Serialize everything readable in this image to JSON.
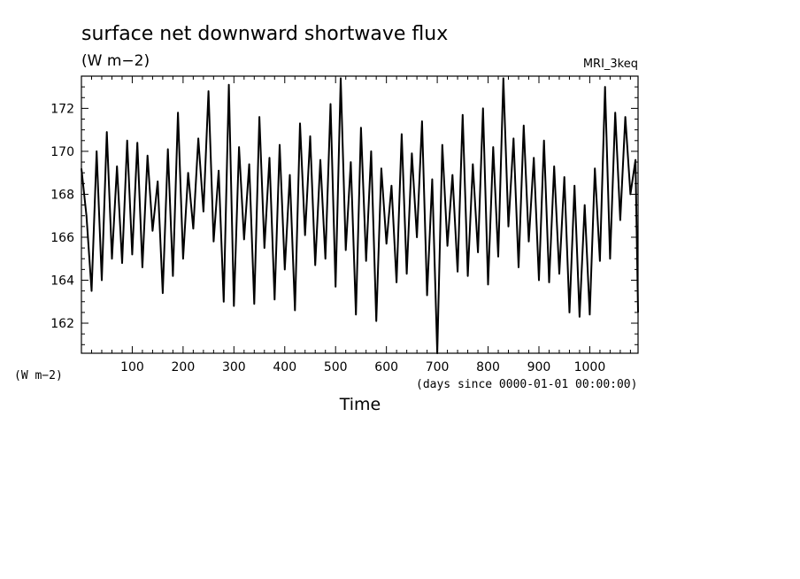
{
  "header": {
    "title": "surface net downward shortwave flux",
    "units": "(W m−2)",
    "model": "MRI_3keq"
  },
  "chart_data": {
    "type": "line",
    "title": "surface net downward shortwave flux",
    "ylabel": "(W m−2)",
    "y_units_label": "(W m−2)",
    "xlabel": "Time",
    "x_units": "(days since 0000-01-01 00:00:00)",
    "xlim": [
      0,
      1095
    ],
    "ylim": [
      160.6,
      173.5
    ],
    "x_ticks": [
      100,
      200,
      300,
      400,
      500,
      600,
      700,
      800,
      900,
      1000
    ],
    "y_ticks": [
      162,
      164,
      166,
      168,
      170,
      172
    ],
    "grid": false,
    "legend": "none",
    "line_color": "#000000",
    "series": [
      {
        "x": [
          0,
          10,
          20,
          30,
          40,
          50,
          60,
          70,
          80,
          90,
          100,
          110,
          120,
          130,
          140,
          150,
          160,
          170,
          180,
          190,
          200,
          210,
          220,
          230,
          240,
          250,
          260,
          270,
          280,
          290,
          300,
          310,
          320,
          330,
          340,
          350,
          360,
          370,
          380,
          390,
          400,
          410,
          420,
          430,
          440,
          450,
          460,
          470,
          480,
          490,
          500,
          510,
          520,
          530,
          540,
          550,
          560,
          570,
          580,
          590,
          600,
          610,
          620,
          630,
          640,
          650,
          660,
          670,
          680,
          690,
          700,
          710,
          720,
          730,
          740,
          750,
          760,
          770,
          780,
          790,
          800,
          810,
          820,
          830,
          840,
          850,
          860,
          870,
          880,
          890,
          900,
          910,
          920,
          930,
          940,
          950,
          960,
          970,
          980,
          990,
          1000,
          1010,
          1020,
          1030,
          1040,
          1050,
          1060,
          1070,
          1080,
          1090,
          1095
        ],
        "values": [
          169.2,
          167.0,
          163.5,
          170.0,
          164.0,
          170.9,
          165.0,
          169.3,
          164.8,
          170.5,
          165.2,
          170.4,
          164.6,
          169.8,
          166.3,
          168.6,
          163.4,
          170.1,
          164.2,
          171.8,
          165.0,
          169.0,
          166.4,
          170.6,
          167.2,
          172.8,
          165.8,
          169.1,
          163.0,
          173.1,
          162.8,
          170.2,
          165.9,
          169.4,
          162.9,
          171.6,
          165.5,
          169.7,
          163.1,
          170.3,
          164.5,
          168.9,
          162.6,
          171.3,
          166.1,
          170.7,
          164.7,
          169.6,
          165.0,
          172.2,
          163.7,
          173.4,
          165.4,
          169.5,
          162.4,
          171.1,
          164.9,
          170.0,
          162.1,
          169.2,
          165.7,
          168.4,
          163.9,
          170.8,
          164.3,
          169.9,
          166.0,
          171.4,
          163.3,
          168.7,
          160.6,
          170.3,
          165.6,
          168.9,
          164.4,
          171.7,
          164.2,
          169.4,
          165.3,
          172.0,
          163.8,
          170.2,
          165.1,
          173.4,
          166.5,
          170.6,
          164.6,
          171.2,
          165.8,
          169.7,
          164.0,
          170.5,
          163.9,
          169.3,
          164.3,
          168.8,
          162.5,
          168.4,
          162.3,
          167.5,
          162.4,
          169.2,
          164.9,
          173.0,
          165.0,
          171.8,
          166.8,
          171.6,
          168.0,
          169.6,
          162.5
        ]
      }
    ]
  }
}
